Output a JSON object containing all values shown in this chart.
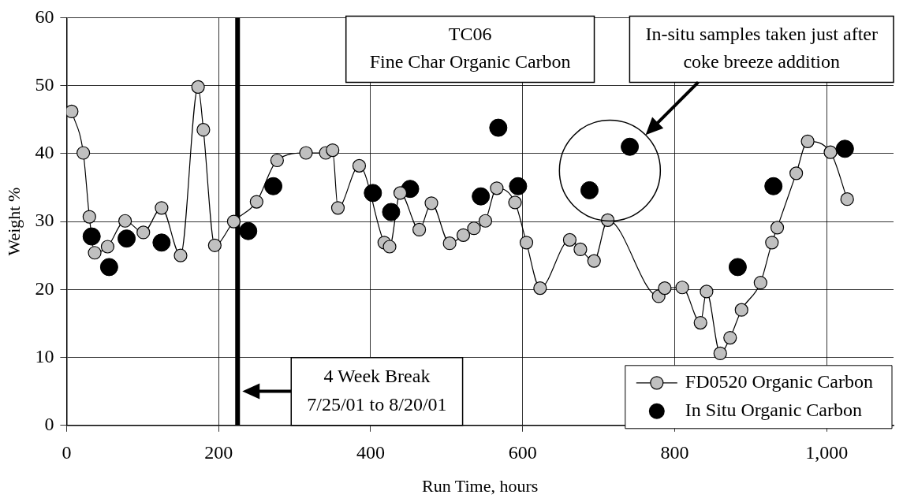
{
  "chart_data": {
    "type": "line",
    "title": "TC06",
    "subtitle": "Fine Char Organic Carbon",
    "xlabel": "Run Time, hours",
    "ylabel": "Weight %",
    "xlim": [
      0,
      1088
    ],
    "xticks": [
      0,
      200,
      400,
      600,
      800,
      {
        "value": 1000,
        "label": "1,000"
      }
    ],
    "ylim": [
      0,
      60
    ],
    "yticks": [
      0,
      10,
      20,
      30,
      40,
      50,
      60
    ],
    "grid": true,
    "legend": "bottom right",
    "series": [
      {
        "name": "FD0520 Organic Carbon",
        "type": "line",
        "color": "#c0c0c0",
        "marker": "circle",
        "x": [
          6.7,
          22,
          30,
          37,
          54,
          77,
          101,
          125,
          150,
          173,
          180,
          195,
          220,
          250,
          277,
          315,
          341,
          350,
          357,
          385,
          418,
          425,
          439,
          464,
          480,
          504,
          522,
          536,
          551,
          566,
          590,
          605,
          623,
          662,
          676,
          694,
          712,
          779,
          787,
          810,
          834,
          842,
          860,
          873,
          888,
          913,
          928,
          935,
          960,
          975,
          1005,
          1027
        ],
        "values": [
          46.2,
          40.1,
          30.7,
          25.4,
          26.3,
          30.1,
          28.4,
          32.0,
          25.0,
          49.8,
          43.5,
          26.5,
          30.0,
          32.9,
          39.0,
          40.1,
          40.1,
          40.5,
          32.0,
          38.2,
          26.9,
          26.3,
          34.2,
          28.8,
          32.7,
          26.8,
          28.0,
          29.0,
          30.1,
          34.9,
          32.8,
          26.9,
          20.2,
          27.3,
          25.9,
          24.2,
          30.2,
          19.0,
          20.2,
          20.3,
          15.1,
          19.7,
          10.6,
          12.9,
          17.0,
          21.0,
          26.9,
          29.1,
          37.1,
          41.8,
          40.2,
          33.3
        ]
      },
      {
        "name": "In Situ Organic Carbon",
        "type": "scatter",
        "color": "#000000",
        "marker": "circle",
        "x": [
          33,
          56,
          79,
          125,
          239,
          272,
          403,
          427,
          452,
          545,
          568,
          594,
          688,
          741,
          883,
          930,
          1024
        ],
        "values": [
          27.8,
          23.3,
          27.5,
          26.9,
          28.6,
          35.2,
          34.2,
          31.4,
          34.8,
          33.7,
          43.8,
          35.2,
          34.6,
          41.0,
          23.3,
          35.2,
          40.7
        ]
      }
    ],
    "ref_lines": [
      {
        "axis": "x",
        "value": 225,
        "color": "#000000"
      }
    ],
    "annotations": [
      "4 Week Break\n7/25/01 to 8/20/01",
      "In-situ samples taken just after\ncoke breeze addition"
    ]
  }
}
